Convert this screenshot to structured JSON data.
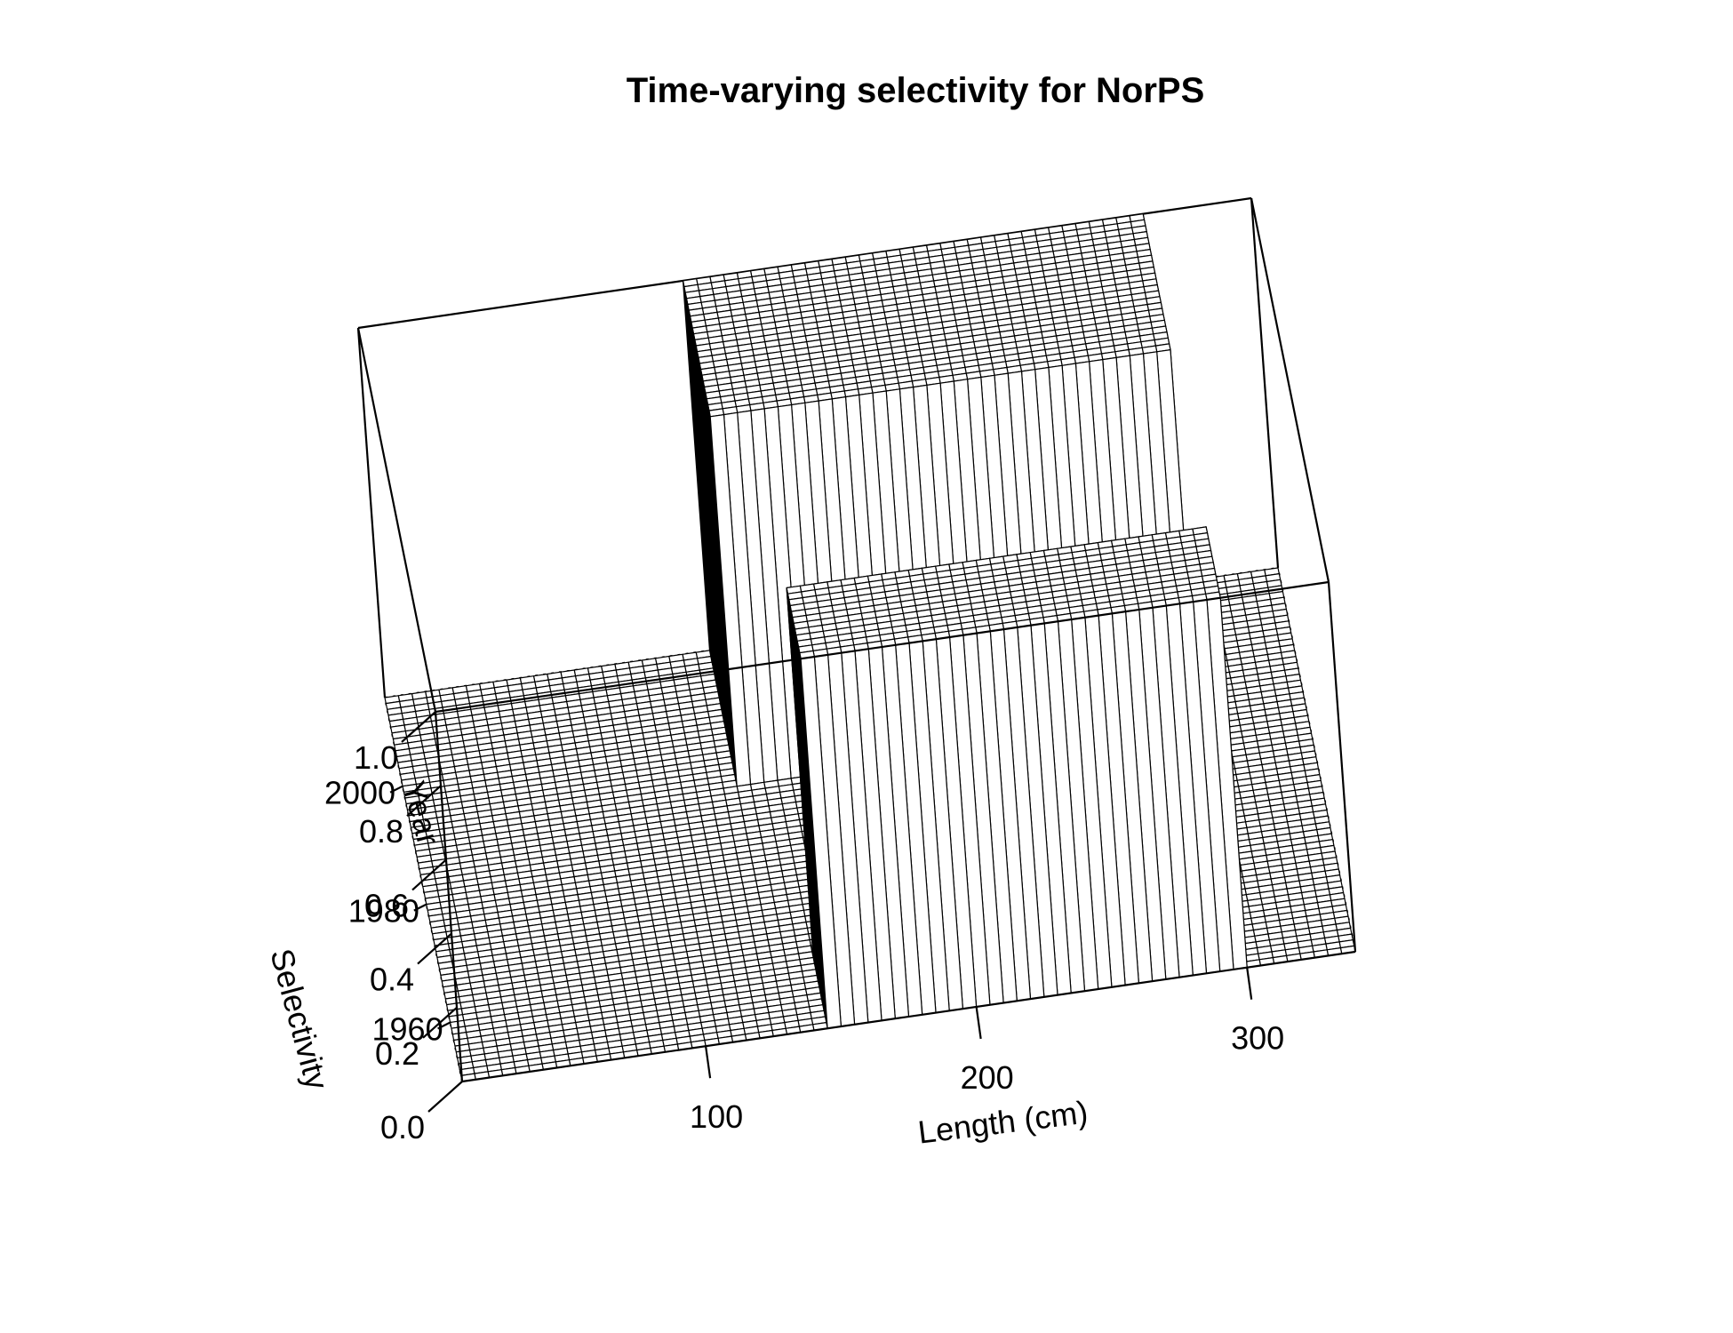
{
  "chart_data": {
    "type": "surface",
    "title": "Time-varying selectivity for NorPS",
    "xlabel": "Length (cm)",
    "ylabel": "Year",
    "zlabel": "Selectivity",
    "xlim": [
      10,
      340
    ],
    "ylim": [
      1950,
      2015
    ],
    "zlim": [
      0,
      1
    ],
    "x_ticks": [
      100,
      200,
      300
    ],
    "y_ticks": [
      1960,
      1980,
      2000
    ],
    "z_ticks": [
      "0.0",
      "0.2",
      "0.4",
      "0.6",
      "0.8",
      "1.0"
    ],
    "x_bin_width_cm": 5,
    "year_step": 1,
    "selectivity_blocks": [
      {
        "years": [
          1950,
          1962
        ],
        "length_range": [
          145,
          300
        ],
        "value": 1.0
      },
      {
        "years": [
          1963,
          1991
        ],
        "length_range": [
          145,
          300
        ],
        "value": 0.0
      },
      {
        "years": [
          1992,
          2015
        ],
        "length_range": [
          130,
          300
        ],
        "value": 1.0
      },
      {
        "years": [
          1992,
          2015
        ],
        "length_range": [
          300,
          340
        ],
        "value": 0.0
      },
      {
        "years": [
          1950,
          2015
        ],
        "length_range": [
          10,
          130
        ],
        "value": 0.0
      }
    ]
  }
}
